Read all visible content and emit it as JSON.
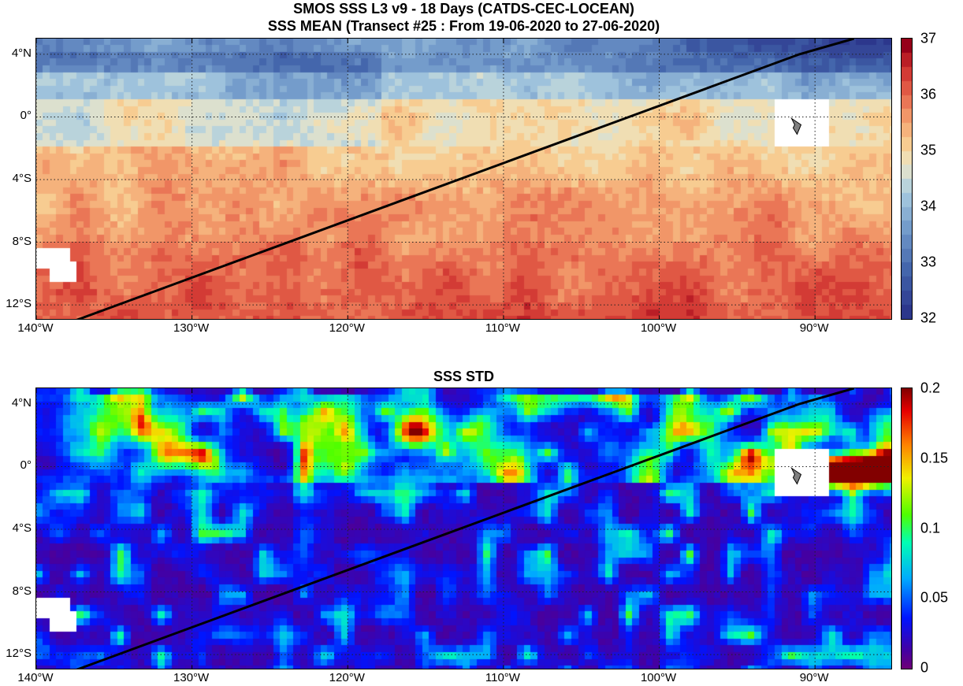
{
  "header": {
    "title_line1": "SMOS SSS L3 v9 - 18 Days (CATDS-CEC-LOCEAN)",
    "title_line2": "SSS MEAN (Transect #25 : From 19-06-2020 to 27-06-2020)"
  },
  "axes": {
    "lon_range": [
      -140,
      -85
    ],
    "lat_range": [
      -13,
      5
    ],
    "lat_ticks": [
      {
        "value": 4,
        "label": "4°N"
      },
      {
        "value": 0,
        "label": "0°"
      },
      {
        "value": -4,
        "label": "4°S"
      },
      {
        "value": -8,
        "label": "8°S"
      },
      {
        "value": -12,
        "label": "12°S"
      }
    ],
    "lon_ticks": [
      {
        "value": -140,
        "label": "140°W"
      },
      {
        "value": -130,
        "label": "130°W"
      },
      {
        "value": -120,
        "label": "120°W"
      },
      {
        "value": -110,
        "label": "110°W"
      },
      {
        "value": -100,
        "label": "100°W"
      },
      {
        "value": -90,
        "label": "90°W"
      }
    ]
  },
  "transect": {
    "points": [
      [
        -137.5,
        -13.0
      ],
      [
        -91.0,
        4.0
      ],
      [
        -87.5,
        5.0
      ]
    ],
    "color": "#000000"
  },
  "panels": {
    "mean": {
      "title": "",
      "colorbar": {
        "min": 32,
        "max": 37,
        "ticks": [
          {
            "value": 37,
            "label": "37"
          },
          {
            "value": 36,
            "label": "36"
          },
          {
            "value": 35,
            "label": "35"
          },
          {
            "value": 34,
            "label": "34"
          },
          {
            "value": 33,
            "label": "33"
          },
          {
            "value": 32,
            "label": "32"
          }
        ],
        "colormap": "diverging-blue-red"
      }
    },
    "std": {
      "title": "SSS STD",
      "colorbar": {
        "min": 0,
        "max": 0.2,
        "ticks": [
          {
            "value": 0.2,
            "label": "0.2"
          },
          {
            "value": 0.15,
            "label": "0.15"
          },
          {
            "value": 0.1,
            "label": "0.1"
          },
          {
            "value": 0.05,
            "label": "0.05"
          },
          {
            "value": 0,
            "label": "0"
          }
        ],
        "colormap": "jet"
      }
    }
  },
  "features": {
    "islands": [
      {
        "name": "Galapagos",
        "lon": -91.2,
        "lat": -0.6,
        "color": "#808080"
      }
    ],
    "land_mask_color": "#ffffff"
  }
}
